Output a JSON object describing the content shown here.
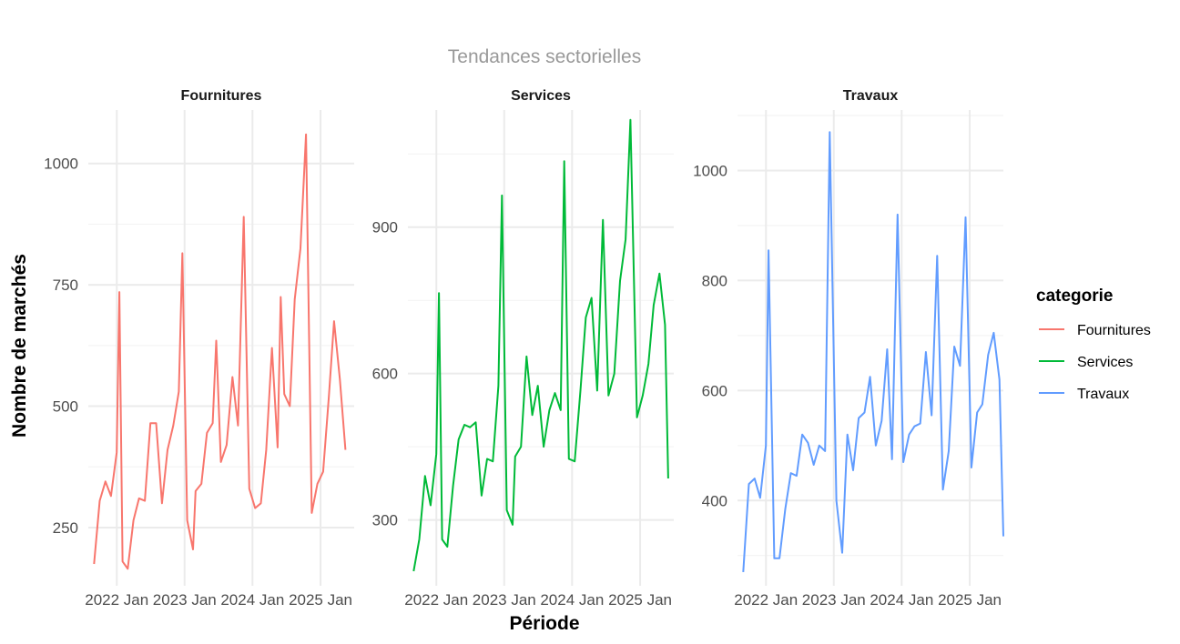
{
  "chart_data": {
    "type": "line",
    "title": "Tendances sectorielles",
    "xlabel": "Période",
    "ylabel": "Nombre de marchés",
    "x_ticks": [
      "2022 Jan",
      "2023 Jan",
      "2024 Jan",
      "2025 Jan"
    ],
    "x_range": [
      "2021-08-01",
      "2025-07-01"
    ],
    "legend": {
      "title": "categorie",
      "placement": "right",
      "entries": [
        "Fournitures",
        "Services",
        "Travaux"
      ]
    },
    "grid": true,
    "panels": [
      {
        "name": "Fournitures",
        "color": "#F8766D",
        "y_ticks": [
          250,
          500,
          750,
          1000
        ],
        "ylim": [
          130,
          1110
        ],
        "points": [
          [
            "2021-09-01",
            175
          ],
          [
            "2021-10-01",
            305
          ],
          [
            "2021-11-01",
            345
          ],
          [
            "2021-12-01",
            315
          ],
          [
            "2022-01-01",
            405
          ],
          [
            "2022-01-15",
            735
          ],
          [
            "2022-02-01",
            180
          ],
          [
            "2022-03-01",
            165
          ],
          [
            "2022-04-01",
            265
          ],
          [
            "2022-05-01",
            310
          ],
          [
            "2022-06-01",
            305
          ],
          [
            "2022-07-01",
            465
          ],
          [
            "2022-08-01",
            465
          ],
          [
            "2022-09-01",
            300
          ],
          [
            "2022-10-01",
            410
          ],
          [
            "2022-11-01",
            460
          ],
          [
            "2022-12-01",
            530
          ],
          [
            "2022-12-20",
            815
          ],
          [
            "2023-01-15",
            265
          ],
          [
            "2023-02-15",
            205
          ],
          [
            "2023-03-01",
            325
          ],
          [
            "2023-04-01",
            340
          ],
          [
            "2023-05-01",
            445
          ],
          [
            "2023-06-01",
            465
          ],
          [
            "2023-06-20",
            635
          ],
          [
            "2023-07-15",
            385
          ],
          [
            "2023-08-15",
            420
          ],
          [
            "2023-09-15",
            560
          ],
          [
            "2023-10-15",
            460
          ],
          [
            "2023-11-15",
            890
          ],
          [
            "2023-12-15",
            330
          ],
          [
            "2024-01-15",
            290
          ],
          [
            "2024-02-15",
            300
          ],
          [
            "2024-03-15",
            410
          ],
          [
            "2024-04-15",
            620
          ],
          [
            "2024-05-15",
            415
          ],
          [
            "2024-06-01",
            725
          ],
          [
            "2024-06-20",
            525
          ],
          [
            "2024-07-20",
            500
          ],
          [
            "2024-08-15",
            720
          ],
          [
            "2024-09-15",
            825
          ],
          [
            "2024-10-15",
            1060
          ],
          [
            "2024-11-15",
            280
          ],
          [
            "2024-12-15",
            340
          ],
          [
            "2025-01-15",
            365
          ],
          [
            "2025-02-15",
            520
          ],
          [
            "2025-03-15",
            675
          ],
          [
            "2025-04-15",
            555
          ],
          [
            "2025-05-15",
            410
          ]
        ]
      },
      {
        "name": "Services",
        "color": "#00BA38",
        "y_ticks": [
          300,
          600,
          900
        ],
        "ylim": [
          165,
          1140
        ],
        "points": [
          [
            "2021-09-01",
            195
          ],
          [
            "2021-10-01",
            260
          ],
          [
            "2021-11-01",
            390
          ],
          [
            "2021-12-01",
            330
          ],
          [
            "2022-01-01",
            435
          ],
          [
            "2022-01-15",
            765
          ],
          [
            "2022-02-01",
            260
          ],
          [
            "2022-03-01",
            245
          ],
          [
            "2022-04-01",
            370
          ],
          [
            "2022-05-01",
            465
          ],
          [
            "2022-06-01",
            495
          ],
          [
            "2022-07-01",
            490
          ],
          [
            "2022-08-01",
            500
          ],
          [
            "2022-09-01",
            350
          ],
          [
            "2022-10-01",
            425
          ],
          [
            "2022-11-01",
            420
          ],
          [
            "2022-12-01",
            575
          ],
          [
            "2022-12-20",
            965
          ],
          [
            "2023-01-15",
            320
          ],
          [
            "2023-02-15",
            290
          ],
          [
            "2023-03-01",
            430
          ],
          [
            "2023-04-01",
            450
          ],
          [
            "2023-05-01",
            635
          ],
          [
            "2023-06-01",
            515
          ],
          [
            "2023-07-01",
            575
          ],
          [
            "2023-08-01",
            450
          ],
          [
            "2023-09-01",
            525
          ],
          [
            "2023-10-01",
            560
          ],
          [
            "2023-11-01",
            525
          ],
          [
            "2023-11-20",
            1035
          ],
          [
            "2023-12-15",
            425
          ],
          [
            "2024-01-15",
            420
          ],
          [
            "2024-02-15",
            565
          ],
          [
            "2024-03-15",
            715
          ],
          [
            "2024-04-15",
            755
          ],
          [
            "2024-05-15",
            565
          ],
          [
            "2024-06-15",
            915
          ],
          [
            "2024-07-15",
            555
          ],
          [
            "2024-08-15",
            600
          ],
          [
            "2024-09-15",
            790
          ],
          [
            "2024-10-15",
            875
          ],
          [
            "2024-11-10",
            1120
          ],
          [
            "2024-12-15",
            510
          ],
          [
            "2025-01-15",
            555
          ],
          [
            "2025-02-15",
            620
          ],
          [
            "2025-03-15",
            740
          ],
          [
            "2025-04-15",
            805
          ],
          [
            "2025-05-15",
            700
          ],
          [
            "2025-06-01",
            385
          ]
        ]
      },
      {
        "name": "Travaux",
        "color": "#619CFF",
        "y_ticks": [
          400,
          600,
          800,
          1000
        ],
        "ylim": [
          245,
          1110
        ],
        "points": [
          [
            "2021-09-01",
            270
          ],
          [
            "2021-10-01",
            430
          ],
          [
            "2021-11-01",
            440
          ],
          [
            "2021-12-01",
            405
          ],
          [
            "2022-01-01",
            500
          ],
          [
            "2022-01-15",
            855
          ],
          [
            "2022-02-15",
            295
          ],
          [
            "2022-03-15",
            295
          ],
          [
            "2022-04-15",
            385
          ],
          [
            "2022-05-15",
            450
          ],
          [
            "2022-06-15",
            445
          ],
          [
            "2022-07-15",
            520
          ],
          [
            "2022-08-15",
            505
          ],
          [
            "2022-09-15",
            465
          ],
          [
            "2022-10-15",
            500
          ],
          [
            "2022-11-15",
            490
          ],
          [
            "2022-12-10",
            1070
          ],
          [
            "2023-01-15",
            400
          ],
          [
            "2023-02-15",
            305
          ],
          [
            "2023-03-15",
            520
          ],
          [
            "2023-04-15",
            455
          ],
          [
            "2023-05-15",
            550
          ],
          [
            "2023-06-15",
            560
          ],
          [
            "2023-07-15",
            625
          ],
          [
            "2023-08-15",
            500
          ],
          [
            "2023-09-15",
            545
          ],
          [
            "2023-10-15",
            675
          ],
          [
            "2023-11-10",
            475
          ],
          [
            "2023-12-10",
            920
          ],
          [
            "2024-01-10",
            470
          ],
          [
            "2024-02-10",
            520
          ],
          [
            "2024-03-10",
            535
          ],
          [
            "2024-04-10",
            540
          ],
          [
            "2024-05-10",
            670
          ],
          [
            "2024-06-10",
            555
          ],
          [
            "2024-07-10",
            845
          ],
          [
            "2024-08-10",
            420
          ],
          [
            "2024-09-10",
            490
          ],
          [
            "2024-10-10",
            680
          ],
          [
            "2024-11-10",
            645
          ],
          [
            "2024-12-10",
            915
          ],
          [
            "2025-01-10",
            460
          ],
          [
            "2025-02-10",
            560
          ],
          [
            "2025-03-10",
            575
          ],
          [
            "2025-04-10",
            665
          ],
          [
            "2025-05-10",
            705
          ],
          [
            "2025-06-10",
            620
          ],
          [
            "2025-07-01",
            335
          ]
        ]
      }
    ]
  }
}
